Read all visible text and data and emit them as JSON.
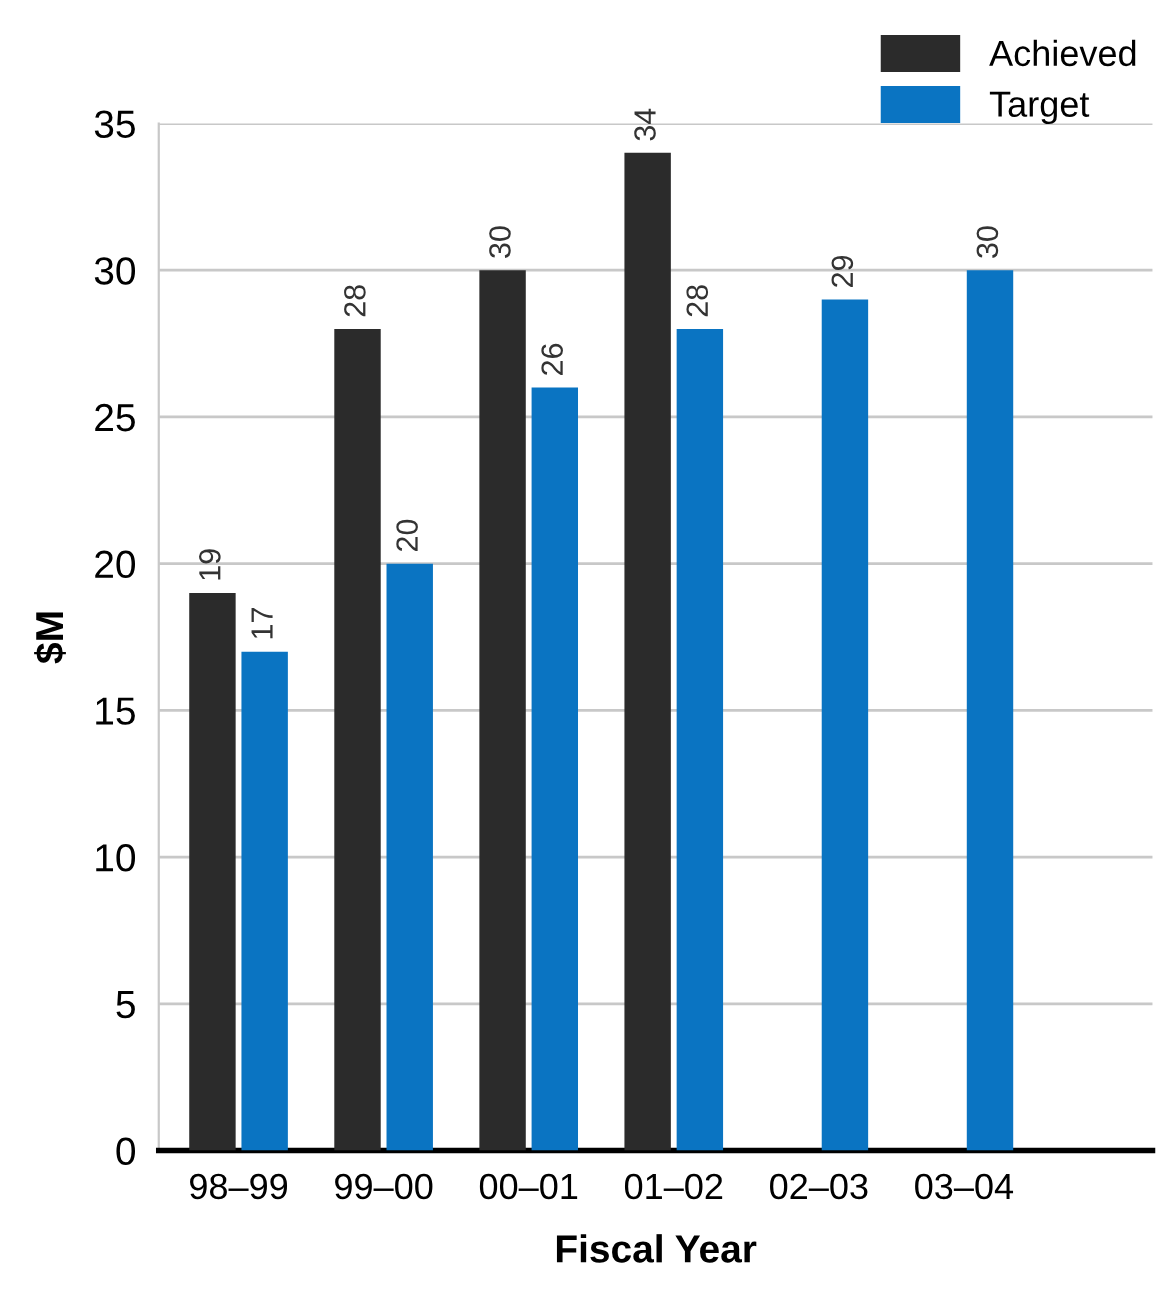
{
  "chart_data": {
    "type": "bar",
    "xlabel": "Fiscal Year",
    "ylabel": "$M",
    "categories": [
      "98–99",
      "99–00",
      "00–01",
      "01–02",
      "02–03",
      "03–04"
    ],
    "series": [
      {
        "name": "Achieved",
        "color": "#2b2b2b",
        "values": [
          19,
          28,
          30,
          34,
          null,
          null
        ]
      },
      {
        "name": "Target",
        "color": "#0a74c2",
        "values": [
          17,
          20,
          26,
          28,
          29,
          30
        ]
      }
    ],
    "ylim": [
      0,
      35
    ],
    "yticks": [
      0,
      5,
      10,
      15,
      20,
      25,
      30,
      35
    ],
    "grid": "y",
    "legend": "top right",
    "data_labels": true
  }
}
